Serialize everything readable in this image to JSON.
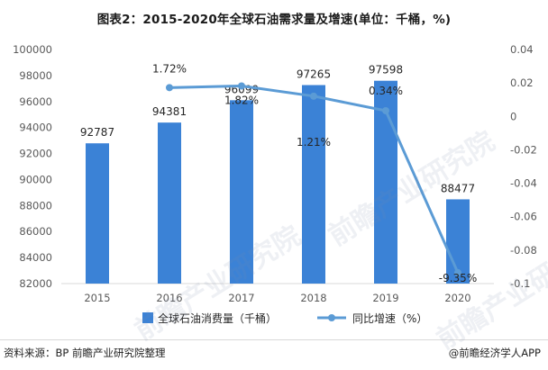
{
  "title": "图表2：2015-2020年全球石油需求量及增速(单位：千桶，%)",
  "source": "资料来源：BP 前瞻产业研究院整理",
  "credit": "@前瞻经济学人APP",
  "watermark": "前瞻产业研究院",
  "colors": {
    "bar": "#3b82d6",
    "line": "#5b9bd5",
    "axis_text": "#595959",
    "grid": "#d9d9d9"
  },
  "chart_data": {
    "type": "bar",
    "categories": [
      "2015",
      "2016",
      "2017",
      "2018",
      "2019",
      "2020"
    ],
    "series": [
      {
        "name": "全球石油消费量（千桶）",
        "type": "bar",
        "values": [
          92787,
          94381,
          96099,
          97265,
          97598,
          88477
        ],
        "labels": [
          "92787",
          "94381",
          "96099",
          "97265",
          "97598",
          "88477"
        ]
      },
      {
        "name": "同比增速（%）",
        "type": "line",
        "x": [
          "2016",
          "2017",
          "2018",
          "2019",
          "2020"
        ],
        "values": [
          0.0172,
          0.0182,
          0.0121,
          0.0034,
          -0.0935
        ],
        "labels": [
          "1.72%",
          "1.82%",
          "1.21%",
          "0.34%",
          "-9.35%"
        ]
      }
    ],
    "y_left": {
      "min": 82000,
      "max": 100000,
      "ticks": [
        "82000",
        "84000",
        "86000",
        "88000",
        "90000",
        "92000",
        "94000",
        "96000",
        "98000",
        "100000"
      ]
    },
    "y_right": {
      "min": -0.1,
      "max": 0.04,
      "ticks": [
        "-0.1",
        "-0.08",
        "-0.06",
        "-0.04",
        "-0.02",
        "0",
        "0.02",
        "0.04"
      ]
    },
    "grid": false,
    "legend": "bottom"
  }
}
